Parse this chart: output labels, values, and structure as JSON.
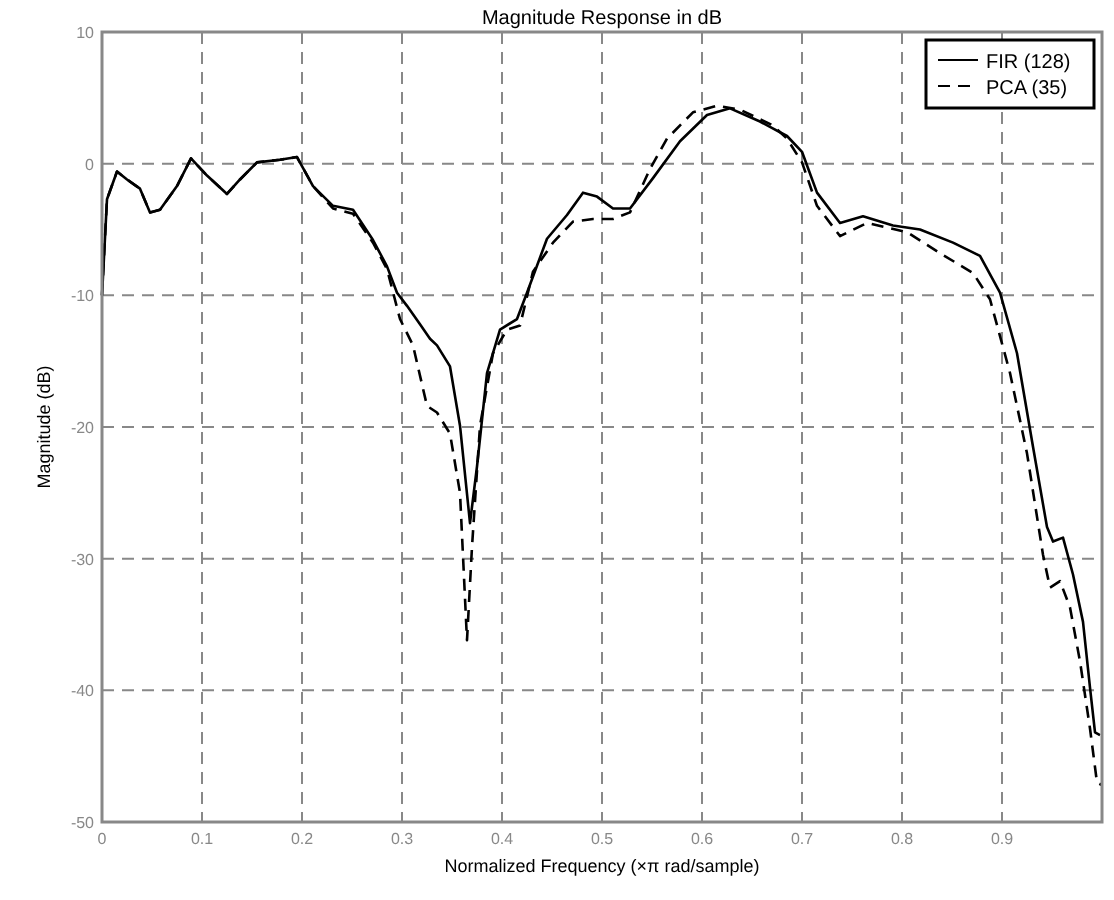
{
  "chart_data": {
    "type": "line",
    "title": "Magnitude Response in dB",
    "xlabel": "Normalized Frequency  (×π rad/sample)",
    "ylabel": "Magnitude (dB)",
    "xlim": [
      0,
      1
    ],
    "ylim": [
      -50,
      10
    ],
    "xticks": [
      0,
      0.1,
      0.2,
      0.3,
      0.4,
      0.5,
      0.6,
      0.7,
      0.8,
      0.9
    ],
    "yticks": [
      -50,
      -40,
      -30,
      -20,
      -10,
      0,
      10
    ],
    "grid": true,
    "legend": "top right",
    "series": [
      {
        "name": "FIR (128)",
        "color": "#000000",
        "line_style": "solid",
        "x": [
          0,
          0.005,
          0.015,
          0.025,
          0.038,
          0.048,
          0.058,
          0.075,
          0.089,
          0.105,
          0.125,
          0.138,
          0.155,
          0.178,
          0.195,
          0.211,
          0.231,
          0.251,
          0.271,
          0.285,
          0.295,
          0.305,
          0.318,
          0.328,
          0.335,
          0.348,
          0.358,
          0.368,
          0.375,
          0.385,
          0.398,
          0.415,
          0.425,
          0.445,
          0.465,
          0.481,
          0.495,
          0.511,
          0.528,
          0.551,
          0.578,
          0.605,
          0.628,
          0.658,
          0.685,
          0.7,
          0.715,
          0.738,
          0.761,
          0.791,
          0.818,
          0.851,
          0.878,
          0.898,
          0.915,
          0.931,
          0.945,
          0.951,
          0.961,
          0.971,
          0.981,
          0.988,
          0.993,
          0.998
        ],
        "values": [
          -10,
          -2.7,
          -0.6,
          -1.2,
          -1.9,
          -3.7,
          -3.5,
          -1.7,
          0.4,
          -0.9,
          -2.3,
          -1.2,
          0.1,
          0.3,
          0.5,
          -1.7,
          -3.2,
          -3.5,
          -5.8,
          -7.8,
          -9.8,
          -10.8,
          -12.2,
          -13.3,
          -13.8,
          -15.4,
          -19.9,
          -27.3,
          -23,
          -15.9,
          -12.6,
          -11.8,
          -9.8,
          -5.7,
          -3.9,
          -2.2,
          -2.5,
          -3.4,
          -3.4,
          -1.1,
          1.7,
          3.7,
          4.2,
          3.2,
          2.1,
          0.9,
          -2.2,
          -4.5,
          -4,
          -4.7,
          -5,
          -6,
          -7,
          -9.8,
          -14.4,
          -21.5,
          -27.6,
          -28.7,
          -28.4,
          -31.2,
          -34.8,
          -39.8,
          -43.2,
          -43.4
        ]
      },
      {
        "name": "PCA (35)",
        "color": "#000000",
        "line_style": "dashed",
        "x": [
          0,
          0.005,
          0.015,
          0.025,
          0.038,
          0.048,
          0.058,
          0.075,
          0.089,
          0.105,
          0.125,
          0.138,
          0.155,
          0.178,
          0.195,
          0.211,
          0.231,
          0.251,
          0.271,
          0.285,
          0.298,
          0.311,
          0.325,
          0.335,
          0.348,
          0.358,
          0.365,
          0.37,
          0.378,
          0.391,
          0.405,
          0.418,
          0.431,
          0.451,
          0.471,
          0.491,
          0.511,
          0.528,
          0.548,
          0.565,
          0.591,
          0.615,
          0.638,
          0.671,
          0.685,
          0.7,
          0.715,
          0.738,
          0.765,
          0.805,
          0.838,
          0.871,
          0.888,
          0.908,
          0.925,
          0.941,
          0.948,
          0.958,
          0.968,
          0.978,
          0.988,
          0.995,
          1
        ],
        "values": [
          -10,
          -2.7,
          -0.6,
          -1.2,
          -1.9,
          -3.7,
          -3.5,
          -1.7,
          0.4,
          -0.9,
          -2.3,
          -1.2,
          0.1,
          0.3,
          0.5,
          -1.7,
          -3.4,
          -3.8,
          -6,
          -8,
          -11.8,
          -13.8,
          -18.4,
          -18.9,
          -20.5,
          -25,
          -36.2,
          -29.1,
          -19.9,
          -14.4,
          -12.6,
          -12.3,
          -8.2,
          -6,
          -4.4,
          -4.2,
          -4.2,
          -3.7,
          -0.4,
          1.9,
          3.9,
          4.4,
          4.1,
          2.9,
          1.9,
          0.1,
          -3.2,
          -5.5,
          -4.5,
          -5.2,
          -6.8,
          -8.3,
          -10.3,
          -15.9,
          -22,
          -29.7,
          -32.2,
          -31.7,
          -33.7,
          -37.8,
          -42.9,
          -47,
          -47.2
        ]
      }
    ]
  }
}
